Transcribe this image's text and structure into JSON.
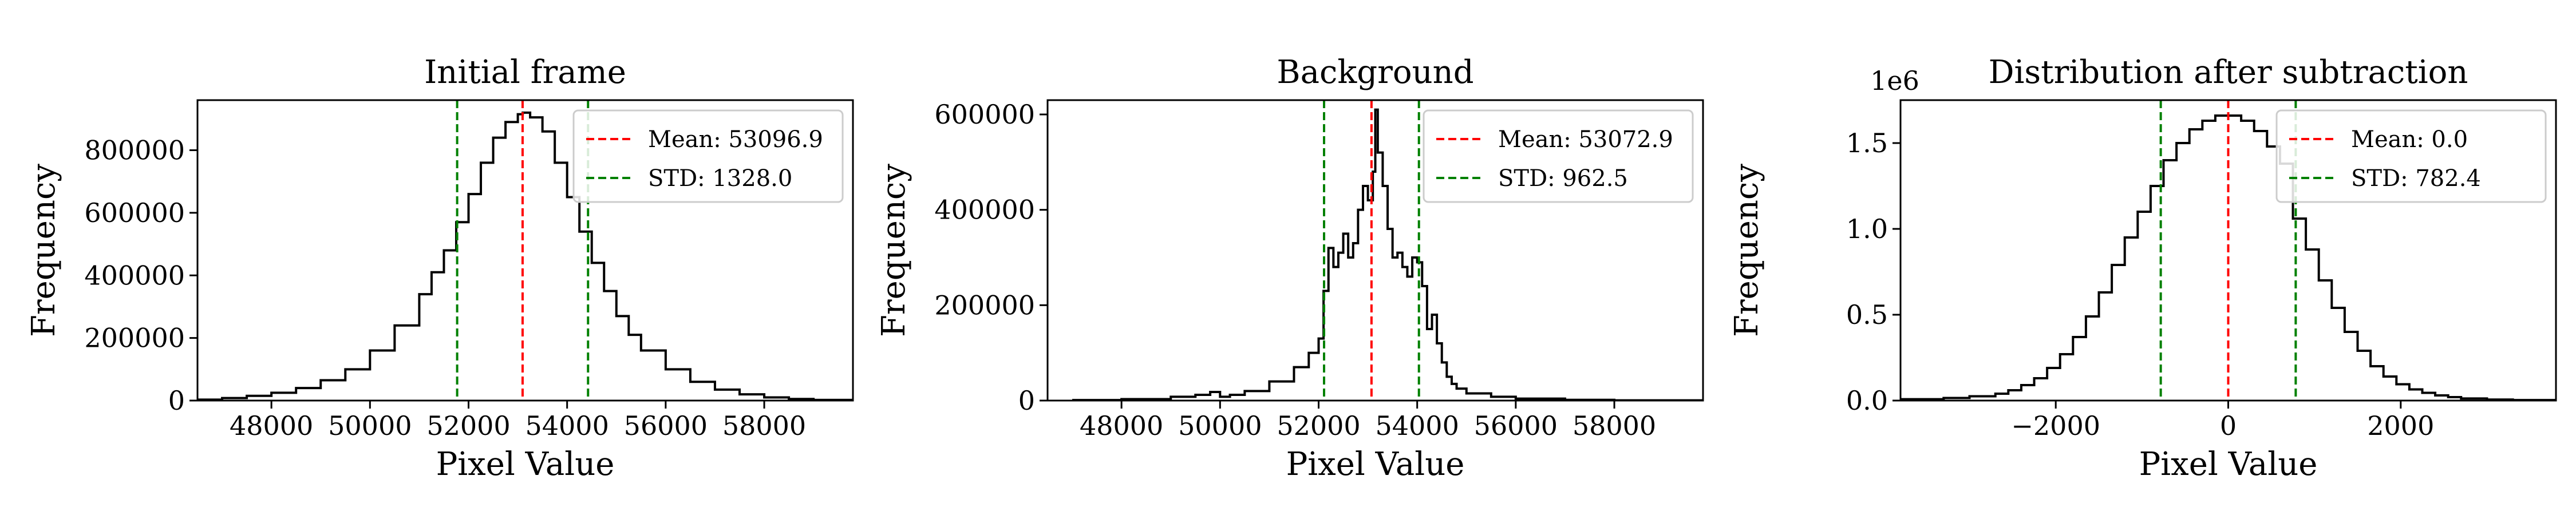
{
  "figure": {
    "background": "#ffffff",
    "mean_color": "#ff0000",
    "std_color": "#008000",
    "hist_color": "#000000"
  },
  "chart_data": [
    {
      "type": "histogram",
      "title": "Initial frame",
      "xlabel": "Pixel Value",
      "ylabel": "Frequency",
      "xlim": [
        46500,
        59800
      ],
      "ylim": [
        0,
        960000
      ],
      "x_ticks": [
        48000,
        50000,
        52000,
        54000,
        56000,
        58000
      ],
      "x_tick_labels": [
        "48000",
        "50000",
        "52000",
        "54000",
        "56000",
        "58000"
      ],
      "y_ticks": [
        0,
        200000,
        400000,
        600000,
        800000
      ],
      "y_tick_labels": [
        "0",
        "200000",
        "400000",
        "600000",
        "800000"
      ],
      "y_offset_label": "",
      "mean": 53096.9,
      "std": 1328.0,
      "legend": [
        "Mean: 53096.9",
        "STD: 1328.0"
      ],
      "legend_loc": "upper right",
      "hist_x": [
        46500,
        47000,
        47500,
        48000,
        48500,
        49000,
        49500,
        50000,
        50500,
        51000,
        51250,
        51500,
        51750,
        52000,
        52250,
        52500,
        52750,
        53000,
        53100,
        53250,
        53500,
        53750,
        54000,
        54250,
        54500,
        54750,
        55000,
        55250,
        55500,
        56000,
        56500,
        57000,
        57500,
        58000,
        58500,
        59000,
        59800
      ],
      "hist_y": [
        3000,
        8000,
        15000,
        25000,
        40000,
        65000,
        100000,
        160000,
        240000,
        340000,
        410000,
        480000,
        570000,
        660000,
        760000,
        840000,
        890000,
        915000,
        920000,
        905000,
        860000,
        760000,
        650000,
        540000,
        440000,
        350000,
        270000,
        210000,
        160000,
        100000,
        60000,
        35000,
        20000,
        10000,
        5000,
        2000,
        1000
      ]
    },
    {
      "type": "histogram",
      "title": "Background",
      "xlabel": "Pixel Value",
      "ylabel": "Frequency",
      "xlim": [
        46500,
        59800
      ],
      "ylim": [
        0,
        630000
      ],
      "x_ticks": [
        48000,
        50000,
        52000,
        54000,
        56000,
        58000
      ],
      "x_tick_labels": [
        "48000",
        "50000",
        "52000",
        "54000",
        "56000",
        "58000"
      ],
      "y_ticks": [
        0,
        200000,
        400000,
        600000
      ],
      "y_tick_labels": [
        "0",
        "200000",
        "400000",
        "600000"
      ],
      "y_offset_label": "",
      "mean": 53072.9,
      "std": 962.5,
      "legend": [
        "Mean: 53072.9",
        "STD: 962.5"
      ],
      "legend_loc": "upper right",
      "hist_x": [
        47000,
        48000,
        49000,
        49500,
        49800,
        50000,
        50200,
        50500,
        51000,
        51500,
        51800,
        52000,
        52100,
        52200,
        52300,
        52400,
        52500,
        52600,
        52700,
        52800,
        52900,
        53000,
        53100,
        53150,
        53200,
        53300,
        53400,
        53500,
        53600,
        53700,
        53800,
        53900,
        54000,
        54100,
        54200,
        54300,
        54400,
        54500,
        54600,
        54700,
        54800,
        55000,
        55500,
        56000,
        57000,
        58000
      ],
      "hist_y": [
        1000,
        3000,
        8000,
        12000,
        18000,
        8000,
        12000,
        20000,
        40000,
        70000,
        100000,
        130000,
        230000,
        320000,
        280000,
        310000,
        350000,
        300000,
        330000,
        400000,
        450000,
        420000,
        480000,
        610000,
        520000,
        450000,
        360000,
        300000,
        310000,
        280000,
        260000,
        300000,
        290000,
        240000,
        150000,
        180000,
        120000,
        80000,
        50000,
        35000,
        25000,
        15000,
        8000,
        4000,
        1500,
        500
      ]
    },
    {
      "type": "histogram",
      "title": "Distribution after subtraction",
      "xlabel": "Pixel Value",
      "ylabel": "Frequency",
      "xlim": [
        -3800,
        3800
      ],
      "ylim": [
        0,
        1750000
      ],
      "x_ticks": [
        -2000,
        0,
        2000
      ],
      "x_tick_labels": [
        "−2000",
        "0",
        "2000"
      ],
      "y_ticks": [
        0,
        500000,
        1000000,
        1500000
      ],
      "y_tick_labels": [
        "0.0",
        "0.5",
        "1.0",
        "1.5"
      ],
      "y_offset_label": "1e6",
      "mean": 0.0,
      "std": 782.4,
      "legend": [
        "Mean: 0.0",
        "STD: 782.4"
      ],
      "legend_loc": "upper right",
      "hist_x": [
        -3800,
        -3300,
        -3000,
        -2700,
        -2550,
        -2400,
        -2250,
        -2100,
        -1950,
        -1800,
        -1650,
        -1500,
        -1350,
        -1200,
        -1050,
        -900,
        -750,
        -600,
        -450,
        -300,
        -150,
        0,
        150,
        300,
        450,
        600,
        750,
        900,
        1050,
        1200,
        1350,
        1500,
        1650,
        1800,
        1950,
        2100,
        2250,
        2400,
        2550,
        2700,
        3000,
        3300
      ],
      "hist_y": [
        8000,
        15000,
        25000,
        40000,
        60000,
        90000,
        130000,
        190000,
        270000,
        370000,
        490000,
        630000,
        790000,
        950000,
        1100000,
        1250000,
        1400000,
        1500000,
        1580000,
        1630000,
        1660000,
        1660000,
        1630000,
        1570000,
        1480000,
        1380000,
        1060000,
        880000,
        700000,
        540000,
        400000,
        290000,
        200000,
        140000,
        95000,
        65000,
        45000,
        30000,
        20000,
        12000,
        6000,
        3000
      ]
    }
  ]
}
